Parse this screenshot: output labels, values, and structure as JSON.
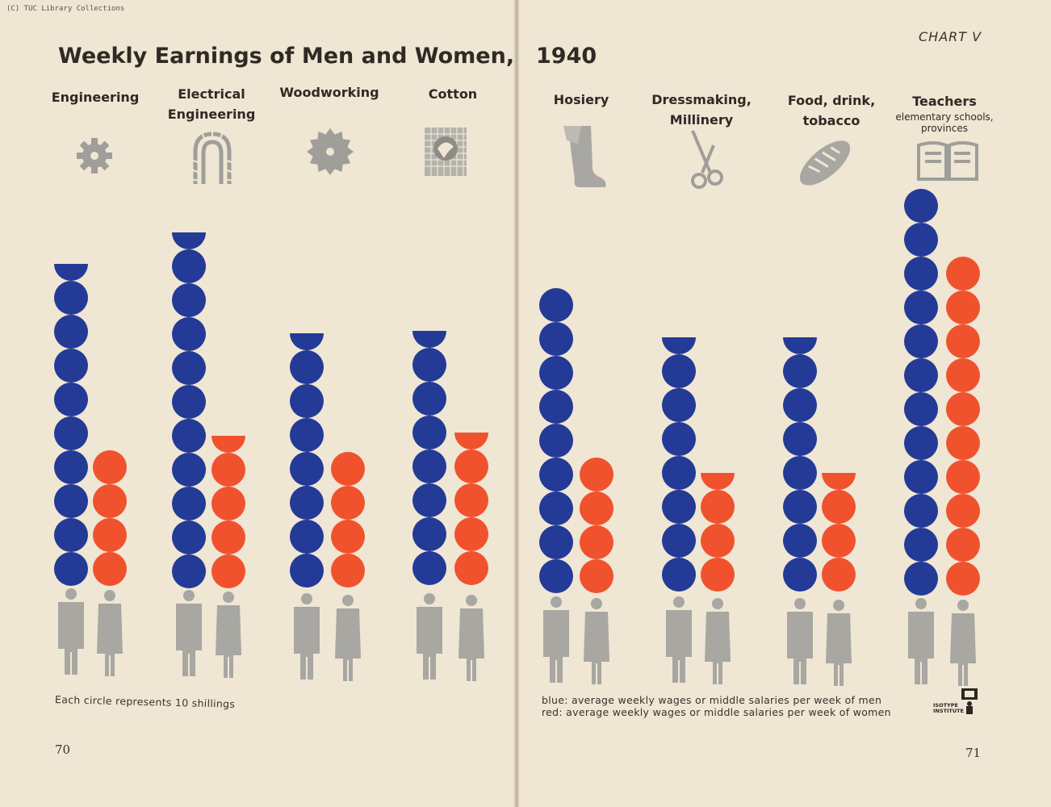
{
  "credit": "(C) TUC Library Collections",
  "chart_label": "CHART V",
  "title_left": "Weekly Earnings of Men and Women,",
  "title_right": "1940",
  "note_left": "Each circle represents 10 shillings",
  "legend_blue": "blue: average weekly wages or middle salaries per week of men",
  "legend_red": "red: average  weekly wages or middle salaries per week of women",
  "logo_lines": [
    "ISOTYPE",
    "INSTITUTE"
  ],
  "page_left": "70",
  "page_right": "71",
  "colors": {
    "men": "#233a96",
    "women": "#f0522e",
    "figure": "#a8a7a2",
    "icon": "#9f9e99",
    "paper": "#efe6d4"
  },
  "chart_data": {
    "type": "bar",
    "title": "Weekly Earnings of Men and Women, 1940",
    "unit": "Each circle represents 10 shillings",
    "categories": [
      {
        "name": "Engineering",
        "sub": "",
        "icon": "gear-icon"
      },
      {
        "name": "Electrical Engineering",
        "sub": "",
        "icon": "cable-coil-icon"
      },
      {
        "name": "Woodworking",
        "sub": "",
        "icon": "saw-blade-icon"
      },
      {
        "name": "Cotton",
        "sub": "",
        "icon": "cotton-fabric-icon"
      },
      {
        "name": "Hosiery",
        "sub": "",
        "icon": "stocking-icon"
      },
      {
        "name": "Dressmaking, Millinery",
        "sub": "",
        "icon": "scissors-icon"
      },
      {
        "name": "Food, drink, tobacco",
        "sub": "",
        "icon": "bread-icon"
      },
      {
        "name": "Teachers",
        "sub": "elementary schools, provinces",
        "icon": "open-book-icon"
      }
    ],
    "series": [
      {
        "key": "men",
        "values": [
          9.5,
          10.5,
          7.5,
          7.5,
          9,
          7.5,
          7.5,
          12
        ]
      },
      {
        "key": "women",
        "values": [
          4,
          4.5,
          4,
          4.5,
          4,
          3.5,
          3.5,
          10
        ]
      }
    ],
    "value_unit": "circles (1 circle = 10 shillings)"
  }
}
